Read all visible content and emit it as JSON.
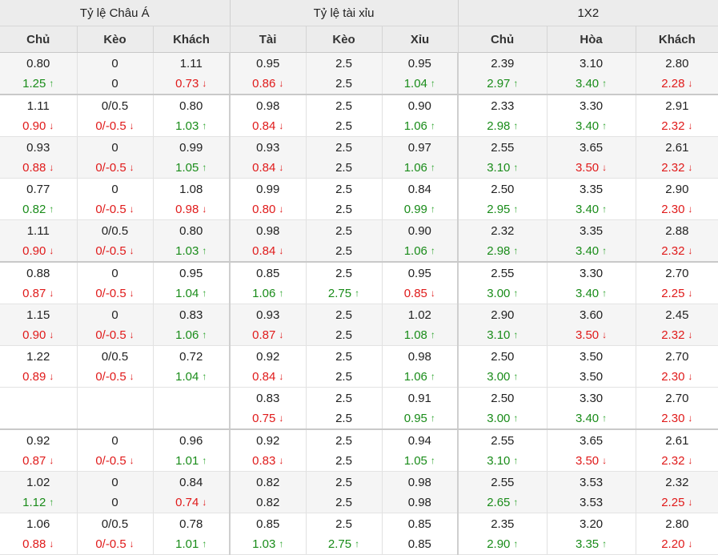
{
  "header": {
    "groups": [
      "Tỷ lệ Châu Á",
      "Tỷ lệ tài xỉu",
      "1X2"
    ],
    "columns": [
      "Chủ",
      "Kèo",
      "Khách",
      "Tài",
      "Kèo",
      "Xỉu",
      "Chủ",
      "Hòa",
      "Khách"
    ]
  },
  "colors": {
    "up": "#1a8c1a",
    "down": "#e01a1a",
    "header_bg": "#ececec",
    "alt_row_bg": "#f5f5f5"
  },
  "icons": {
    "up": "arrow-up-icon",
    "down": "arrow-down-icon"
  },
  "rows": [
    {
      "open": [
        "0.80",
        "0",
        "1.11",
        "0.95",
        "2.5",
        "0.95",
        "2.39",
        "3.10",
        "2.80"
      ],
      "live": [
        [
          "1.25",
          "up"
        ],
        [
          "0",
          ""
        ],
        [
          "0.73",
          "down"
        ],
        [
          "0.86",
          "down"
        ],
        [
          "2.5",
          ""
        ],
        [
          "1.04",
          "up"
        ],
        [
          "2.97",
          "up"
        ],
        [
          "3.40",
          "up"
        ],
        [
          "2.28",
          "down"
        ]
      ]
    },
    {
      "open": [
        "1.11",
        "0/0.5",
        "0.80",
        "0.98",
        "2.5",
        "0.90",
        "2.33",
        "3.30",
        "2.91"
      ],
      "live": [
        [
          "0.90",
          "down"
        ],
        [
          "0/-0.5",
          "down"
        ],
        [
          "1.03",
          "up"
        ],
        [
          "0.84",
          "down"
        ],
        [
          "2.5",
          ""
        ],
        [
          "1.06",
          "up"
        ],
        [
          "2.98",
          "up"
        ],
        [
          "3.40",
          "up"
        ],
        [
          "2.32",
          "down"
        ]
      ]
    },
    {
      "open": [
        "0.93",
        "0",
        "0.99",
        "0.93",
        "2.5",
        "0.97",
        "2.55",
        "3.65",
        "2.61"
      ],
      "live": [
        [
          "0.88",
          "down"
        ],
        [
          "0/-0.5",
          "down"
        ],
        [
          "1.05",
          "up"
        ],
        [
          "0.84",
          "down"
        ],
        [
          "2.5",
          ""
        ],
        [
          "1.06",
          "up"
        ],
        [
          "3.10",
          "up"
        ],
        [
          "3.50",
          "down"
        ],
        [
          "2.32",
          "down"
        ]
      ]
    },
    {
      "open": [
        "0.77",
        "0",
        "1.08",
        "0.99",
        "2.5",
        "0.84",
        "2.50",
        "3.35",
        "2.90"
      ],
      "live": [
        [
          "0.82",
          "up"
        ],
        [
          "0/-0.5",
          "down"
        ],
        [
          "0.98",
          "down"
        ],
        [
          "0.80",
          "down"
        ],
        [
          "2.5",
          ""
        ],
        [
          "0.99",
          "up"
        ],
        [
          "2.95",
          "up"
        ],
        [
          "3.40",
          "up"
        ],
        [
          "2.30",
          "down"
        ]
      ]
    },
    {
      "open": [
        "1.11",
        "0/0.5",
        "0.80",
        "0.98",
        "2.5",
        "0.90",
        "2.32",
        "3.35",
        "2.88"
      ],
      "live": [
        [
          "0.90",
          "down"
        ],
        [
          "0/-0.5",
          "down"
        ],
        [
          "1.03",
          "up"
        ],
        [
          "0.84",
          "down"
        ],
        [
          "2.5",
          ""
        ],
        [
          "1.06",
          "up"
        ],
        [
          "2.98",
          "up"
        ],
        [
          "3.40",
          "up"
        ],
        [
          "2.32",
          "down"
        ]
      ]
    },
    {
      "open": [
        "0.88",
        "0",
        "0.95",
        "0.85",
        "2.5",
        "0.95",
        "2.55",
        "3.30",
        "2.70"
      ],
      "live": [
        [
          "0.87",
          "down"
        ],
        [
          "0/-0.5",
          "down"
        ],
        [
          "1.04",
          "up"
        ],
        [
          "1.06",
          "up"
        ],
        [
          "2.75",
          "up"
        ],
        [
          "0.85",
          "down"
        ],
        [
          "3.00",
          "up"
        ],
        [
          "3.40",
          "up"
        ],
        [
          "2.25",
          "down"
        ]
      ]
    },
    {
      "open": [
        "1.15",
        "0",
        "0.83",
        "0.93",
        "2.5",
        "1.02",
        "2.90",
        "3.60",
        "2.45"
      ],
      "live": [
        [
          "0.90",
          "down"
        ],
        [
          "0/-0.5",
          "down"
        ],
        [
          "1.06",
          "up"
        ],
        [
          "0.87",
          "down"
        ],
        [
          "2.5",
          ""
        ],
        [
          "1.08",
          "up"
        ],
        [
          "3.10",
          "up"
        ],
        [
          "3.50",
          "down"
        ],
        [
          "2.32",
          "down"
        ]
      ]
    },
    {
      "open": [
        "1.22",
        "0/0.5",
        "0.72",
        "0.92",
        "2.5",
        "0.98",
        "2.50",
        "3.50",
        "2.70"
      ],
      "live": [
        [
          "0.89",
          "down"
        ],
        [
          "0/-0.5",
          "down"
        ],
        [
          "1.04",
          "up"
        ],
        [
          "0.84",
          "down"
        ],
        [
          "2.5",
          ""
        ],
        [
          "1.06",
          "up"
        ],
        [
          "3.00",
          "up"
        ],
        [
          "3.50",
          ""
        ],
        [
          "2.30",
          "down"
        ]
      ]
    },
    {
      "open": [
        "",
        "",
        "",
        "0.83",
        "2.5",
        "0.91",
        "2.50",
        "3.30",
        "2.70"
      ],
      "live": [
        [
          "",
          ""
        ],
        [
          "",
          ""
        ],
        [
          "",
          ""
        ],
        [
          "0.75",
          "down"
        ],
        [
          "2.5",
          ""
        ],
        [
          "0.95",
          "up"
        ],
        [
          "3.00",
          "up"
        ],
        [
          "3.40",
          "up"
        ],
        [
          "2.30",
          "down"
        ]
      ]
    },
    {
      "open": [
        "0.92",
        "0",
        "0.96",
        "0.92",
        "2.5",
        "0.94",
        "2.55",
        "3.65",
        "2.61"
      ],
      "live": [
        [
          "0.87",
          "down"
        ],
        [
          "0/-0.5",
          "down"
        ],
        [
          "1.01",
          "up"
        ],
        [
          "0.83",
          "down"
        ],
        [
          "2.5",
          ""
        ],
        [
          "1.05",
          "up"
        ],
        [
          "3.10",
          "up"
        ],
        [
          "3.50",
          "down"
        ],
        [
          "2.32",
          "down"
        ]
      ]
    },
    {
      "open": [
        "1.02",
        "0",
        "0.84",
        "0.82",
        "2.5",
        "0.98",
        "2.55",
        "3.53",
        "2.32"
      ],
      "live": [
        [
          "1.12",
          "up"
        ],
        [
          "0",
          ""
        ],
        [
          "0.74",
          "down"
        ],
        [
          "0.82",
          ""
        ],
        [
          "2.5",
          ""
        ],
        [
          "0.98",
          ""
        ],
        [
          "2.65",
          "up"
        ],
        [
          "3.53",
          ""
        ],
        [
          "2.25",
          "down"
        ]
      ]
    },
    {
      "open": [
        "1.06",
        "0/0.5",
        "0.78",
        "0.85",
        "2.5",
        "0.85",
        "2.35",
        "3.20",
        "2.80"
      ],
      "live": [
        [
          "0.88",
          "down"
        ],
        [
          "0/-0.5",
          "down"
        ],
        [
          "1.01",
          "up"
        ],
        [
          "1.03",
          "up"
        ],
        [
          "2.75",
          "up"
        ],
        [
          "0.85",
          ""
        ],
        [
          "2.90",
          "up"
        ],
        [
          "3.35",
          "up"
        ],
        [
          "2.20",
          "down"
        ]
      ]
    }
  ]
}
